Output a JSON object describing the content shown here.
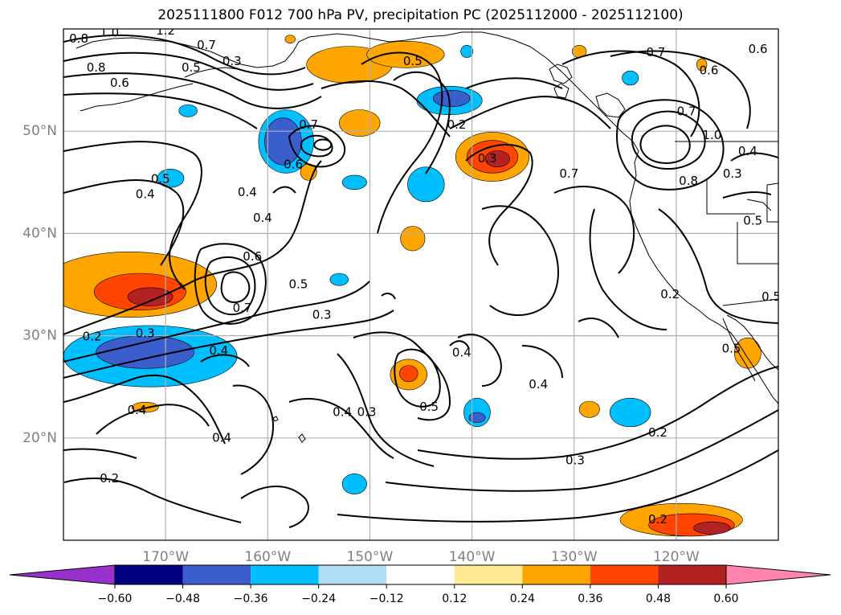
{
  "title": "2025111800 F012 700 hPa PV, precipitation PC (2025112000 - 2025112100)",
  "map": {
    "projection": "plate carree",
    "lon_range": [
      -180,
      -110
    ],
    "lat_range": [
      10,
      60
    ],
    "lat_ticks": [
      {
        "value": 20,
        "label": "20°N"
      },
      {
        "value": 30,
        "label": "30°N"
      },
      {
        "value": 40,
        "label": "40°N"
      },
      {
        "value": 50,
        "label": "50°N"
      }
    ],
    "lon_ticks": [
      {
        "value": -170,
        "label": "170°W"
      },
      {
        "value": -160,
        "label": "160°W"
      },
      {
        "value": -150,
        "label": "150°W"
      },
      {
        "value": -140,
        "label": "140°W"
      },
      {
        "value": -130,
        "label": "130°W"
      },
      {
        "value": -120,
        "label": "120°W"
      }
    ]
  },
  "pv_contour_labels": [
    {
      "text": "0.8",
      "lon": -178.5,
      "lat": 59.0
    },
    {
      "text": "1.0",
      "lon": -175.5,
      "lat": 59.6
    },
    {
      "text": "1.2",
      "lon": -170.0,
      "lat": 59.8
    },
    {
      "text": "0.7",
      "lon": -166.0,
      "lat": 58.4
    },
    {
      "text": "0.8",
      "lon": -176.8,
      "lat": 56.2
    },
    {
      "text": "0.5",
      "lon": -167.5,
      "lat": 56.2
    },
    {
      "text": "0.3",
      "lon": -163.5,
      "lat": 56.8
    },
    {
      "text": "0.6",
      "lon": -174.5,
      "lat": 54.7
    },
    {
      "text": "0.5",
      "lon": -145.8,
      "lat": 56.8
    },
    {
      "text": "0.2",
      "lon": -141.5,
      "lat": 50.6
    },
    {
      "text": "0.7",
      "lon": -156.0,
      "lat": 50.6
    },
    {
      "text": "0.6",
      "lon": -157.5,
      "lat": 46.7
    },
    {
      "text": "0.5",
      "lon": -170.5,
      "lat": 45.3
    },
    {
      "text": "0.4",
      "lon": -162.0,
      "lat": 44.0
    },
    {
      "text": "0.4",
      "lon": -172.0,
      "lat": 43.8
    },
    {
      "text": "0.4",
      "lon": -160.5,
      "lat": 41.5
    },
    {
      "text": "0.3",
      "lon": -138.5,
      "lat": 47.3
    },
    {
      "text": "0.7",
      "lon": -130.5,
      "lat": 45.8
    },
    {
      "text": "0.7",
      "lon": -122.0,
      "lat": 57.7
    },
    {
      "text": "0.6",
      "lon": -116.8,
      "lat": 55.9
    },
    {
      "text": "0.6",
      "lon": -112.0,
      "lat": 58.0
    },
    {
      "text": "0.7",
      "lon": -119.0,
      "lat": 51.9
    },
    {
      "text": "1.0",
      "lon": -116.5,
      "lat": 49.6
    },
    {
      "text": "0.8",
      "lon": -118.8,
      "lat": 45.1
    },
    {
      "text": "0.3",
      "lon": -114.5,
      "lat": 45.8
    },
    {
      "text": "0.4",
      "lon": -113.0,
      "lat": 48.0
    },
    {
      "text": "0.5",
      "lon": -112.5,
      "lat": 41.2
    },
    {
      "text": "0.6",
      "lon": -161.5,
      "lat": 37.7
    },
    {
      "text": "0.5",
      "lon": -157.0,
      "lat": 35.0
    },
    {
      "text": "0.7",
      "lon": -162.5,
      "lat": 32.7
    },
    {
      "text": "0.3",
      "lon": -154.7,
      "lat": 32.0
    },
    {
      "text": "0.2",
      "lon": -177.2,
      "lat": 29.9
    },
    {
      "text": "0.3",
      "lon": -172.0,
      "lat": 30.2
    },
    {
      "text": "0.4",
      "lon": -164.8,
      "lat": 28.5
    },
    {
      "text": "0.4",
      "lon": -141.0,
      "lat": 28.3
    },
    {
      "text": "0.4",
      "lon": -133.5,
      "lat": 25.2
    },
    {
      "text": "0.5",
      "lon": -144.2,
      "lat": 23.0
    },
    {
      "text": "0.4",
      "lon": -172.8,
      "lat": 22.7
    },
    {
      "text": "0.4",
      "lon": -152.7,
      "lat": 22.5
    },
    {
      "text": "0.3",
      "lon": -150.3,
      "lat": 22.5
    },
    {
      "text": "0.4",
      "lon": -164.5,
      "lat": 20.0
    },
    {
      "text": "0.2",
      "lon": -121.8,
      "lat": 20.5
    },
    {
      "text": "0.3",
      "lon": -129.9,
      "lat": 17.8
    },
    {
      "text": "0.2",
      "lon": -175.5,
      "lat": 16.0
    },
    {
      "text": "0.2",
      "lon": -121.8,
      "lat": 12.0
    },
    {
      "text": "0.2",
      "lon": -120.6,
      "lat": 34.0
    },
    {
      "text": "0.5",
      "lon": -110.7,
      "lat": 33.8
    },
    {
      "text": "0.5",
      "lon": -114.6,
      "lat": 28.7
    }
  ],
  "precip_anomaly_blobs": [
    {
      "lon": -173.5,
      "lat": 35.0,
      "rx": 8.5,
      "ry": 3.2,
      "value": 0.3
    },
    {
      "lon": -172.5,
      "lat": 34.3,
      "rx": 4.5,
      "ry": 1.8,
      "value": 0.4
    },
    {
      "lon": -171.5,
      "lat": 33.8,
      "rx": 2.2,
      "ry": 0.9,
      "value": 0.5
    },
    {
      "lon": -171.5,
      "lat": 28.0,
      "rx": 8.5,
      "ry": 3.0,
      "value": -0.25
    },
    {
      "lon": -172.0,
      "lat": 28.4,
      "rx": 4.8,
      "ry": 1.6,
      "value": -0.4
    },
    {
      "lon": -158.2,
      "lat": 49.0,
      "rx": 2.7,
      "ry": 3.1,
      "value": -0.25
    },
    {
      "lon": -158.5,
      "lat": 49.0,
      "rx": 1.8,
      "ry": 2.3,
      "value": -0.4
    },
    {
      "lon": -152.0,
      "lat": 56.5,
      "rx": 4.2,
      "ry": 1.8,
      "value": 0.25
    },
    {
      "lon": -146.5,
      "lat": 57.5,
      "rx": 3.8,
      "ry": 1.3,
      "value": 0.25
    },
    {
      "lon": -151.0,
      "lat": 50.8,
      "rx": 2.0,
      "ry": 1.3,
      "value": 0.25
    },
    {
      "lon": -142.2,
      "lat": 53.0,
      "rx": 3.2,
      "ry": 1.4,
      "value": -0.25
    },
    {
      "lon": -142.0,
      "lat": 53.2,
      "rx": 1.8,
      "ry": 0.8,
      "value": -0.4
    },
    {
      "lon": -138.0,
      "lat": 47.5,
      "rx": 3.6,
      "ry": 2.4,
      "value": 0.28
    },
    {
      "lon": -138.0,
      "lat": 47.5,
      "rx": 2.5,
      "ry": 1.6,
      "value": 0.4
    },
    {
      "lon": -137.5,
      "lat": 47.3,
      "rx": 1.2,
      "ry": 0.8,
      "value": 0.5
    },
    {
      "lon": -144.5,
      "lat": 44.8,
      "rx": 1.8,
      "ry": 1.7,
      "value": -0.25
    },
    {
      "lon": -145.8,
      "lat": 39.5,
      "rx": 1.2,
      "ry": 1.2,
      "value": 0.25
    },
    {
      "lon": -146.2,
      "lat": 26.2,
      "rx": 1.8,
      "ry": 1.5,
      "value": 0.25
    },
    {
      "lon": -146.2,
      "lat": 26.3,
      "rx": 0.9,
      "ry": 0.8,
      "value": 0.4
    },
    {
      "lon": -139.5,
      "lat": 22.5,
      "rx": 1.3,
      "ry": 1.4,
      "value": -0.25
    },
    {
      "lon": -139.5,
      "lat": 22.0,
      "rx": 0.8,
      "ry": 0.5,
      "value": -0.4
    },
    {
      "lon": -124.5,
      "lat": 22.5,
      "rx": 2.0,
      "ry": 1.4,
      "value": -0.25
    },
    {
      "lon": -151.5,
      "lat": 15.5,
      "rx": 1.2,
      "ry": 1.0,
      "value": -0.25
    },
    {
      "lon": -153.0,
      "lat": 35.5,
      "rx": 0.9,
      "ry": 0.6,
      "value": -0.25
    },
    {
      "lon": -119.5,
      "lat": 12.0,
      "rx": 6.0,
      "ry": 1.6,
      "value": 0.25
    },
    {
      "lon": -118.5,
      "lat": 11.5,
      "rx": 4.2,
      "ry": 1.1,
      "value": 0.4
    },
    {
      "lon": -116.5,
      "lat": 11.2,
      "rx": 1.8,
      "ry": 0.6,
      "value": 0.5
    },
    {
      "lon": -167.8,
      "lat": 52.0,
      "rx": 0.9,
      "ry": 0.6,
      "value": -0.25
    },
    {
      "lon": -169.5,
      "lat": 45.4,
      "rx": 1.3,
      "ry": 0.9,
      "value": -0.25
    },
    {
      "lon": -151.5,
      "lat": 45.0,
      "rx": 1.2,
      "ry": 0.7,
      "value": -0.25
    },
    {
      "lon": -156.0,
      "lat": 46.0,
      "rx": 0.8,
      "ry": 0.8,
      "value": 0.25
    },
    {
      "lon": -128.5,
      "lat": 22.8,
      "rx": 1.0,
      "ry": 0.8,
      "value": 0.25
    },
    {
      "lon": -113.0,
      "lat": 28.3,
      "rx": 1.3,
      "ry": 1.5,
      "value": 0.25
    },
    {
      "lon": -140.5,
      "lat": 57.8,
      "rx": 0.6,
      "ry": 0.6,
      "value": -0.25
    },
    {
      "lon": -129.5,
      "lat": 57.8,
      "rx": 0.7,
      "ry": 0.6,
      "value": 0.25
    },
    {
      "lon": -124.5,
      "lat": 55.2,
      "rx": 0.8,
      "ry": 0.7,
      "value": -0.25
    },
    {
      "lon": -172.0,
      "lat": 23.0,
      "rx": 1.3,
      "ry": 0.5,
      "value": 0.25
    },
    {
      "lon": -117.5,
      "lat": 56.5,
      "rx": 0.5,
      "ry": 0.6,
      "value": 0.25
    },
    {
      "lon": -157.8,
      "lat": 59.0,
      "rx": 0.5,
      "ry": 0.4,
      "value": 0.25
    }
  ],
  "colorbar": {
    "ticks": [
      "−0.60",
      "−0.48",
      "−0.36",
      "−0.24",
      "−0.12",
      "0.12",
      "0.24",
      "0.36",
      "0.48",
      "0.60"
    ],
    "colors": {
      "below": "#9932CC",
      "bins": [
        "#000080",
        "#3A5FCD",
        "#00BFFF",
        "#ADDDF7",
        "#FFFFFF",
        "#FFE992",
        "#FFA500",
        "#FF4500",
        "#B22222"
      ],
      "above": "#FF85AC"
    }
  }
}
